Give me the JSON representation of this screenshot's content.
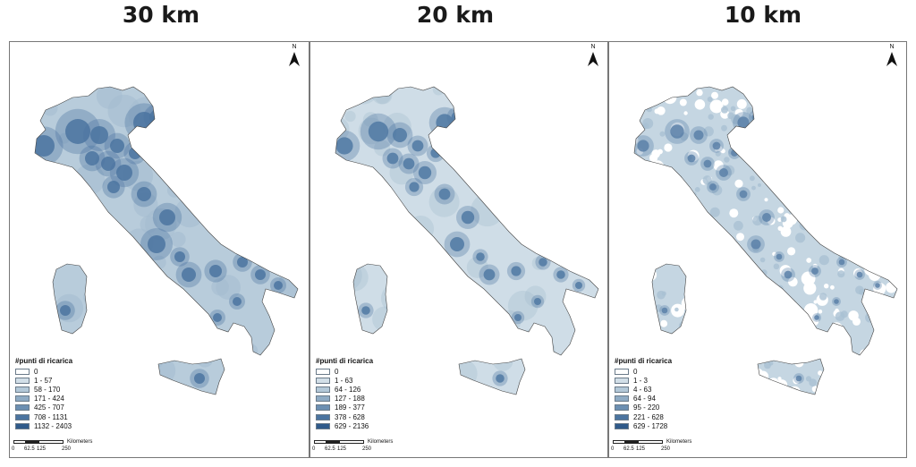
{
  "panels": [
    {
      "title": "30 km",
      "legend_title": "#punti di ricarica",
      "classes": [
        {
          "label": "0",
          "color": "#ffffff"
        },
        {
          "label": "1 - 57",
          "color": "#d2dfe8"
        },
        {
          "label": "58 - 170",
          "color": "#b3c8d8"
        },
        {
          "label": "171 - 424",
          "color": "#8fabc4"
        },
        {
          "label": "425 - 707",
          "color": "#6c8fb2"
        },
        {
          "label": "708 - 1131",
          "color": "#4b74a0"
        },
        {
          "label": "1132 - 2403",
          "color": "#2f5a8a"
        }
      ],
      "base_color": "#b8ccdb",
      "hotspot_color": "#4b74a0",
      "white_gaps": false
    },
    {
      "title": "20 km",
      "legend_title": "#punti di ricarica",
      "classes": [
        {
          "label": "0",
          "color": "#ffffff"
        },
        {
          "label": "1 - 63",
          "color": "#d2dfe8"
        },
        {
          "label": "64 - 126",
          "color": "#b3c8d8"
        },
        {
          "label": "127 - 188",
          "color": "#8fabc4"
        },
        {
          "label": "189 - 377",
          "color": "#6c8fb2"
        },
        {
          "label": "378 - 628",
          "color": "#4b74a0"
        },
        {
          "label": "629 - 2136",
          "color": "#2f5a8a"
        }
      ],
      "base_color": "#cfdde7",
      "hotspot_color": "#5079a3",
      "white_gaps": false
    },
    {
      "title": "10 km",
      "legend_title": "#punti di ricarica",
      "classes": [
        {
          "label": "0",
          "color": "#ffffff"
        },
        {
          "label": "1 - 3",
          "color": "#d2dfe8"
        },
        {
          "label": "4 - 63",
          "color": "#b3c8d8"
        },
        {
          "label": "64 - 94",
          "color": "#8fabc4"
        },
        {
          "label": "95 - 220",
          "color": "#6c8fb2"
        },
        {
          "label": "221 - 628",
          "color": "#4b74a0"
        },
        {
          "label": "629 - 1728",
          "color": "#2f5a8a"
        }
      ],
      "base_color": "#c5d6e2",
      "hotspot_color": "#5a80a8",
      "white_gaps": true
    }
  ],
  "north_label": "N",
  "scale_bar": {
    "ticks": [
      "0",
      "62.5",
      "125",
      "250"
    ],
    "unit": "Kilometers"
  }
}
